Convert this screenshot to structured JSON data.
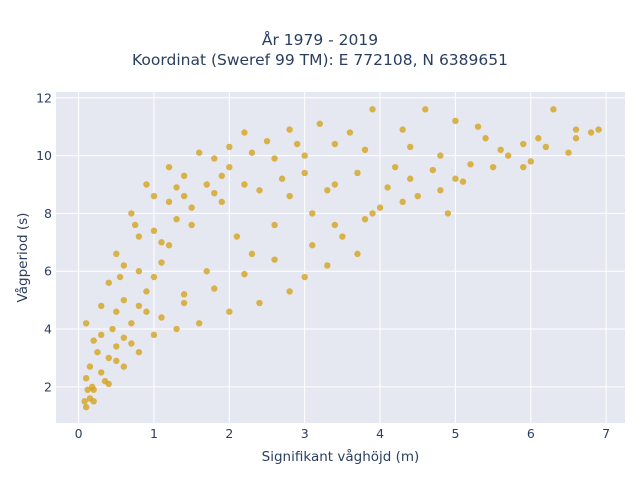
{
  "chart_data": {
    "type": "scatter",
    "title_lines": [
      "År 1979 - 2019",
      "Koordinat (Sweref 99 TM): E 772108, N 6389651"
    ],
    "xlabel": "Signifikant våghöjd (m)",
    "ylabel": "Vågperiod (s)",
    "xlim": [
      -0.3,
      7.25
    ],
    "ylim": [
      0.75,
      12.2
    ],
    "x_ticks": [
      0,
      1,
      2,
      3,
      4,
      5,
      6,
      7
    ],
    "x_tick_labels": [
      "0",
      "1",
      "2",
      "3",
      "4",
      "5",
      "6",
      "7"
    ],
    "y_ticks": [
      2,
      4,
      6,
      8,
      10,
      12
    ],
    "y_tick_labels": [
      "2",
      "4",
      "6",
      "8",
      "10",
      "12"
    ],
    "grid": true,
    "marker_color": "#d4a31e",
    "plot_background": "#e5e8f0",
    "series": [
      {
        "points": [
          [
            0.1,
            1.3
          ],
          [
            0.15,
            1.6
          ],
          [
            0.2,
            1.9
          ],
          [
            0.1,
            2.3
          ],
          [
            0.3,
            2.5
          ],
          [
            0.4,
            3.0
          ],
          [
            0.5,
            3.4
          ],
          [
            0.3,
            3.8
          ],
          [
            0.6,
            3.7
          ],
          [
            0.7,
            4.2
          ],
          [
            0.5,
            4.6
          ],
          [
            0.8,
            4.8
          ],
          [
            0.9,
            5.3
          ],
          [
            1.0,
            5.8
          ],
          [
            1.1,
            6.3
          ],
          [
            1.2,
            6.9
          ],
          [
            1.0,
            7.4
          ],
          [
            1.3,
            7.8
          ],
          [
            1.5,
            8.2
          ],
          [
            1.4,
            8.6
          ],
          [
            1.7,
            9.0
          ],
          [
            1.9,
            9.3
          ],
          [
            2.0,
            9.6
          ],
          [
            1.8,
            9.9
          ],
          [
            2.3,
            10.1
          ],
          [
            2.5,
            10.5
          ],
          [
            2.2,
            10.8
          ],
          [
            2.8,
            10.9
          ],
          [
            3.2,
            11.1
          ],
          [
            3.9,
            11.6
          ],
          [
            4.6,
            11.6
          ],
          [
            5.0,
            11.2
          ],
          [
            5.3,
            11.0
          ],
          [
            6.3,
            11.6
          ],
          [
            6.6,
            10.9
          ],
          [
            6.9,
            10.9
          ],
          [
            6.6,
            10.6
          ],
          [
            5.9,
            10.4
          ],
          [
            6.0,
            9.8
          ],
          [
            5.5,
            9.6
          ],
          [
            5.0,
            9.2
          ],
          [
            4.5,
            8.6
          ],
          [
            4.9,
            8.0
          ],
          [
            4.0,
            8.2
          ],
          [
            3.8,
            7.8
          ],
          [
            3.5,
            7.2
          ],
          [
            3.7,
            6.6
          ],
          [
            3.3,
            6.2
          ],
          [
            3.0,
            5.8
          ],
          [
            2.8,
            5.3
          ],
          [
            2.4,
            4.9
          ],
          [
            2.0,
            4.6
          ],
          [
            1.6,
            4.2
          ],
          [
            1.3,
            4.0
          ],
          [
            1.0,
            3.8
          ],
          [
            0.8,
            3.2
          ],
          [
            0.6,
            2.7
          ],
          [
            0.4,
            2.1
          ],
          [
            0.2,
            1.5
          ],
          [
            1.2,
            9.6
          ],
          [
            0.9,
            9.0
          ],
          [
            0.7,
            8.0
          ],
          [
            0.5,
            6.6
          ],
          [
            0.4,
            5.6
          ],
          [
            0.3,
            4.8
          ],
          [
            0.1,
            4.2
          ],
          [
            2.6,
            9.9
          ],
          [
            3.0,
            9.4
          ],
          [
            3.4,
            9.0
          ],
          [
            4.2,
            9.6
          ],
          [
            4.8,
            10.0
          ],
          [
            5.6,
            10.2
          ],
          [
            6.1,
            10.6
          ],
          [
            4.3,
            10.9
          ],
          [
            3.6,
            10.8
          ],
          [
            2.9,
            10.4
          ],
          [
            1.6,
            10.1
          ],
          [
            1.2,
            8.4
          ],
          [
            2.1,
            7.2
          ],
          [
            2.6,
            7.6
          ],
          [
            3.1,
            8.0
          ],
          [
            1.7,
            6.0
          ],
          [
            2.3,
            6.6
          ],
          [
            1.4,
            5.2
          ],
          [
            0.9,
            4.6
          ],
          [
            0.6,
            5.0
          ],
          [
            0.8,
            6.0
          ],
          [
            1.1,
            7.0
          ],
          [
            1.5,
            7.6
          ],
          [
            1.9,
            8.4
          ],
          [
            2.4,
            8.8
          ],
          [
            2.8,
            8.6
          ],
          [
            3.3,
            8.8
          ],
          [
            3.7,
            9.4
          ],
          [
            4.1,
            8.9
          ],
          [
            4.4,
            9.2
          ],
          [
            4.7,
            9.5
          ],
          [
            5.2,
            9.7
          ],
          [
            5.7,
            10.0
          ],
          [
            6.2,
            10.3
          ],
          [
            5.4,
            10.6
          ],
          [
            4.4,
            10.3
          ],
          [
            3.8,
            10.2
          ],
          [
            3.4,
            10.4
          ],
          [
            3.0,
            10.0
          ],
          [
            2.7,
            9.2
          ],
          [
            2.2,
            9.0
          ],
          [
            1.8,
            8.7
          ],
          [
            1.3,
            8.9
          ],
          [
            0.8,
            7.2
          ],
          [
            0.6,
            6.2
          ],
          [
            0.45,
            4.0
          ],
          [
            0.25,
            3.2
          ],
          [
            0.15,
            2.7
          ],
          [
            0.35,
            2.2
          ],
          [
            0.5,
            2.9
          ],
          [
            0.7,
            3.5
          ],
          [
            1.1,
            4.4
          ],
          [
            1.4,
            4.9
          ],
          [
            1.8,
            5.4
          ],
          [
            2.2,
            5.9
          ],
          [
            2.6,
            6.4
          ],
          [
            3.1,
            6.9
          ],
          [
            3.4,
            7.6
          ],
          [
            3.9,
            8.0
          ],
          [
            4.3,
            8.4
          ],
          [
            4.8,
            8.8
          ],
          [
            5.1,
            9.1
          ],
          [
            5.9,
            9.6
          ],
          [
            6.5,
            10.1
          ],
          [
            6.8,
            10.8
          ],
          [
            2.0,
            10.3
          ],
          [
            1.4,
            9.3
          ],
          [
            1.0,
            8.6
          ],
          [
            0.75,
            7.6
          ],
          [
            0.55,
            5.8
          ],
          [
            0.2,
            3.6
          ],
          [
            0.12,
            1.9
          ],
          [
            0.08,
            1.5
          ],
          [
            0.18,
            2.0
          ]
        ]
      }
    ]
  }
}
